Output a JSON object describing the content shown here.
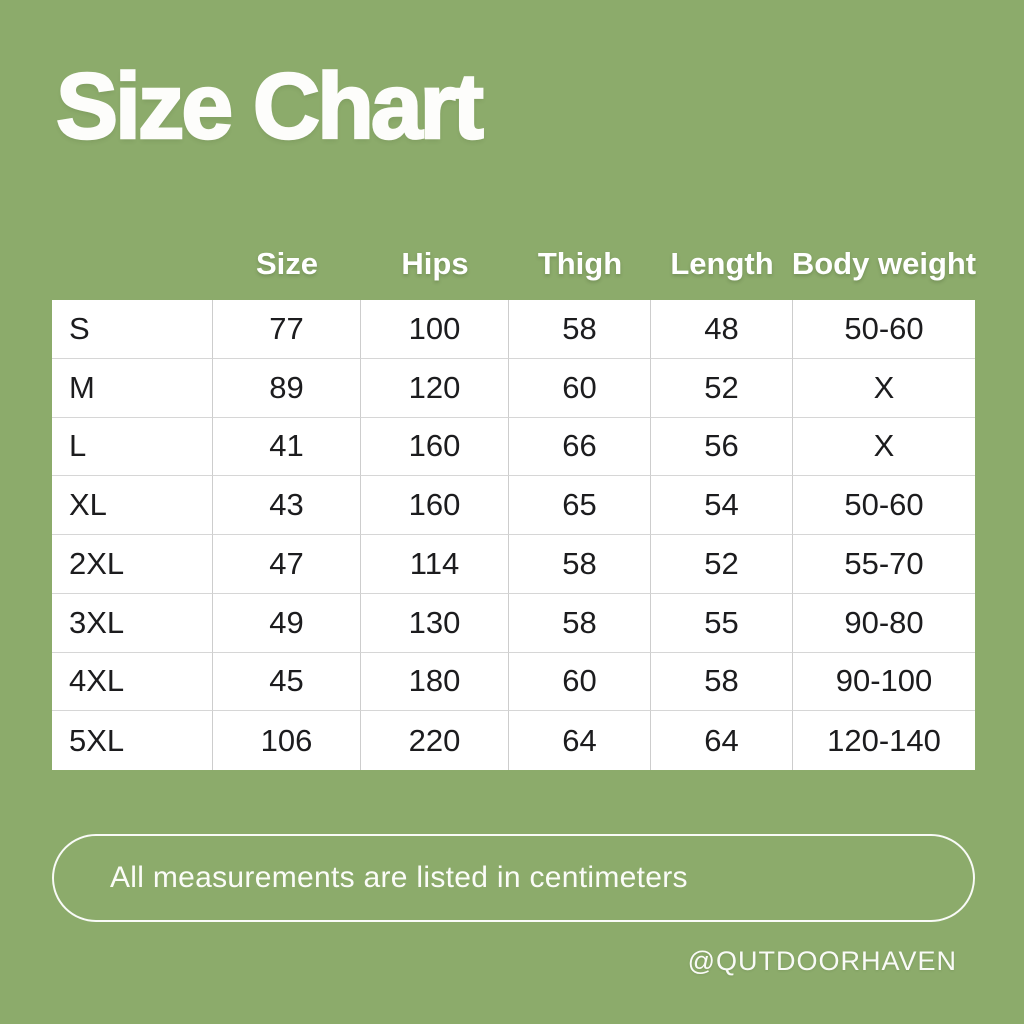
{
  "page": {
    "title": "Size Chart",
    "note": "All measurements are listed in centimeters",
    "handle": "@QUTDOORHAVEN"
  },
  "colors": {
    "background": "#8cab6b",
    "table_background": "#ffffff",
    "table_border": "#cdcdcd",
    "table_text": "#1c1c1e",
    "accent_text": "#ffffff"
  },
  "chart_data": {
    "type": "table",
    "title": "Size Chart",
    "columns": [
      "",
      "Size",
      "Hips",
      "Thigh",
      "Length",
      "Body weight"
    ],
    "rows": [
      [
        "S",
        "77",
        "100",
        "58",
        "48",
        "50-60"
      ],
      [
        "M",
        "89",
        "120",
        "60",
        "52",
        "X"
      ],
      [
        "L",
        "41",
        "160",
        "66",
        "56",
        "X"
      ],
      [
        "XL",
        "43",
        "160",
        "65",
        "54",
        "50-60"
      ],
      [
        "2XL",
        "47",
        "114",
        "58",
        "52",
        "55-70"
      ],
      [
        "3XL",
        "49",
        "130",
        "58",
        "55",
        "90-80"
      ],
      [
        "4XL",
        "45",
        "180",
        "60",
        "58",
        "90-100"
      ],
      [
        "5XL",
        "106",
        "220",
        "64",
        "64",
        "120-140"
      ]
    ],
    "layout": "first column holds size labels and has no header; headers rendered on green background above white table",
    "footnote": "All measurements are listed in centimeters"
  }
}
